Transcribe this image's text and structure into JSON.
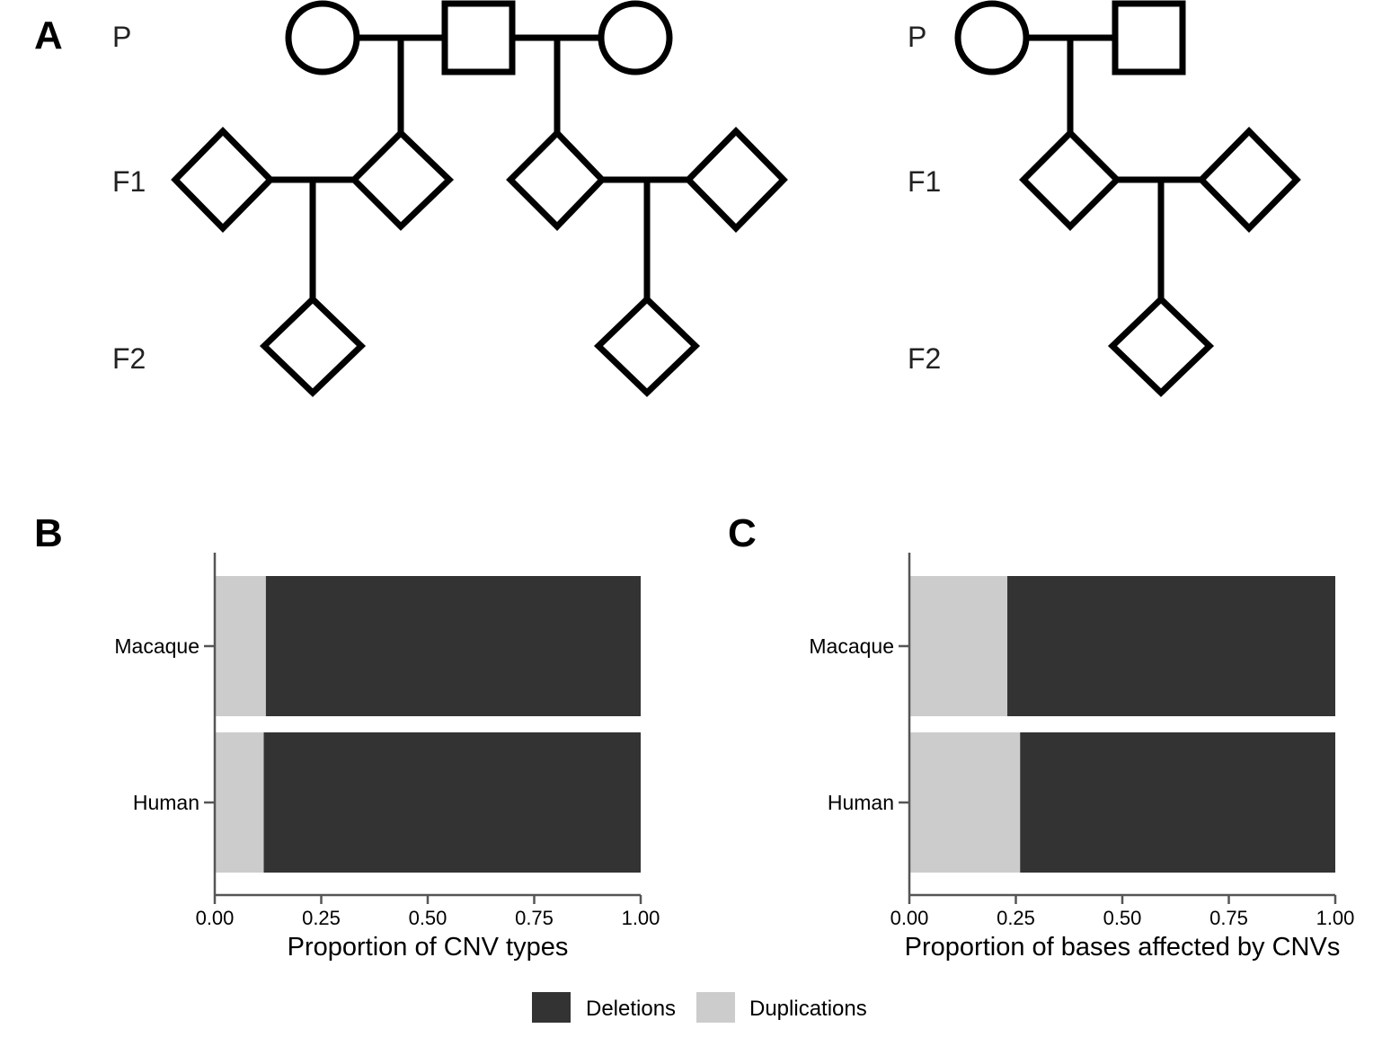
{
  "panels": {
    "a": {
      "letter": "A",
      "generations": [
        "P",
        "F1",
        "F2"
      ]
    },
    "b": {
      "letter": "B"
    },
    "c": {
      "letter": "C"
    }
  },
  "colors": {
    "deletions": "#333333",
    "duplications": "#cccccc"
  },
  "legend": {
    "items": [
      {
        "label": "Deletions",
        "color": "#333333"
      },
      {
        "label": "Duplications",
        "color": "#cccccc"
      }
    ]
  },
  "chart_data": [
    {
      "type": "bar",
      "orientation": "horizontal",
      "stacked": true,
      "categories": [
        "Macaque",
        "Human"
      ],
      "series": [
        {
          "name": "Duplications",
          "values": [
            0.12,
            0.115
          ]
        },
        {
          "name": "Deletions",
          "values": [
            0.88,
            0.885
          ]
        }
      ],
      "xlabel": "Proportion of CNV types",
      "xlim": [
        0,
        1
      ],
      "xticks": [
        "0.00",
        "0.25",
        "0.50",
        "0.75",
        "1.00"
      ],
      "grid": false,
      "legend": "bottom"
    },
    {
      "type": "bar",
      "orientation": "horizontal",
      "stacked": true,
      "categories": [
        "Macaque",
        "Human"
      ],
      "series": [
        {
          "name": "Duplications",
          "values": [
            0.23,
            0.26
          ]
        },
        {
          "name": "Deletions",
          "values": [
            0.77,
            0.74
          ]
        }
      ],
      "xlabel": "Proportion of bases affected by CNVs",
      "xlim": [
        0,
        1
      ],
      "xticks": [
        "0.00",
        "0.25",
        "0.50",
        "0.75",
        "1.00"
      ],
      "grid": false,
      "legend": "bottom"
    }
  ]
}
